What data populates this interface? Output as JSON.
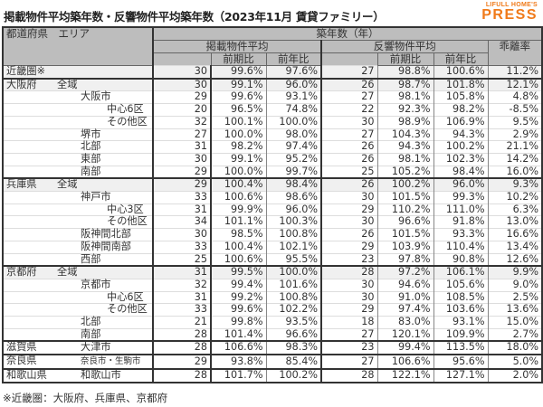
{
  "title": "掲載物件平均築年数・反響物件平均築年数（2023年11月 賃貸ファミリー）",
  "logo": {
    "sub": "LIFULL HOME'S",
    "main": "PRESS"
  },
  "header": {
    "area": "都道府県　エリア",
    "group": "築年数（年）",
    "listed": "掲載物件平均",
    "response": "反響物件平均",
    "gap": "乖離率",
    "qoq": "前期比",
    "yoy": "前年比"
  },
  "rows": [
    {
      "pref": "近畿圏※",
      "area": "",
      "level": 0,
      "listed": "30",
      "listed_qoq": "99.6%",
      "listed_yoy": "97.6%",
      "resp": "27",
      "resp_qoq": "98.8%",
      "resp_yoy": "100.6%",
      "gap": "11.2%",
      "shade": true,
      "section": false
    },
    {
      "pref": "大阪府",
      "area": "全域",
      "level": 1,
      "listed": "30",
      "listed_qoq": "99.1%",
      "listed_yoy": "96.0%",
      "resp": "26",
      "resp_qoq": "98.7%",
      "resp_yoy": "101.8%",
      "gap": "12.1%",
      "shade": true,
      "section": true
    },
    {
      "pref": "",
      "area": "大阪市",
      "level": 2,
      "listed": "29",
      "listed_qoq": "99.6%",
      "listed_yoy": "93.1%",
      "resp": "27",
      "resp_qoq": "98.1%",
      "resp_yoy": "105.8%",
      "gap": "4.8%"
    },
    {
      "pref": "",
      "area": "中心6区",
      "level": 3,
      "listed": "20",
      "listed_qoq": "96.5%",
      "listed_yoy": "74.8%",
      "resp": "22",
      "resp_qoq": "92.3%",
      "resp_yoy": "98.2%",
      "gap": "-8.5%"
    },
    {
      "pref": "",
      "area": "その他区",
      "level": 3,
      "listed": "32",
      "listed_qoq": "100.1%",
      "listed_yoy": "100.0%",
      "resp": "30",
      "resp_qoq": "98.9%",
      "resp_yoy": "106.9%",
      "gap": "9.5%"
    },
    {
      "pref": "",
      "area": "堺市",
      "level": 2,
      "listed": "27",
      "listed_qoq": "100.0%",
      "listed_yoy": "98.0%",
      "resp": "27",
      "resp_qoq": "104.3%",
      "resp_yoy": "94.3%",
      "gap": "2.9%"
    },
    {
      "pref": "",
      "area": "北部",
      "level": 2,
      "listed": "31",
      "listed_qoq": "98.2%",
      "listed_yoy": "97.4%",
      "resp": "26",
      "resp_qoq": "94.3%",
      "resp_yoy": "100.2%",
      "gap": "21.1%"
    },
    {
      "pref": "",
      "area": "東部",
      "level": 2,
      "listed": "30",
      "listed_qoq": "99.1%",
      "listed_yoy": "95.2%",
      "resp": "26",
      "resp_qoq": "98.1%",
      "resp_yoy": "102.3%",
      "gap": "14.2%"
    },
    {
      "pref": "",
      "area": "南部",
      "level": 2,
      "listed": "29",
      "listed_qoq": "100.0%",
      "listed_yoy": "99.7%",
      "resp": "25",
      "resp_qoq": "105.2%",
      "resp_yoy": "98.4%",
      "gap": "16.0%"
    },
    {
      "pref": "兵庫県",
      "area": "全域",
      "level": 1,
      "listed": "29",
      "listed_qoq": "100.4%",
      "listed_yoy": "98.4%",
      "resp": "26",
      "resp_qoq": "100.2%",
      "resp_yoy": "96.0%",
      "gap": "9.3%",
      "shade": true,
      "section": true
    },
    {
      "pref": "",
      "area": "神戸市",
      "level": 2,
      "listed": "33",
      "listed_qoq": "100.6%",
      "listed_yoy": "98.6%",
      "resp": "30",
      "resp_qoq": "101.5%",
      "resp_yoy": "99.3%",
      "gap": "10.2%"
    },
    {
      "pref": "",
      "area": "中心3区",
      "level": 3,
      "listed": "31",
      "listed_qoq": "99.9%",
      "listed_yoy": "96.0%",
      "resp": "29",
      "resp_qoq": "110.2%",
      "resp_yoy": "111.0%",
      "gap": "6.3%"
    },
    {
      "pref": "",
      "area": "その他区",
      "level": 3,
      "listed": "34",
      "listed_qoq": "101.1%",
      "listed_yoy": "100.3%",
      "resp": "30",
      "resp_qoq": "96.6%",
      "resp_yoy": "91.8%",
      "gap": "13.0%"
    },
    {
      "pref": "",
      "area": "阪神間北部",
      "level": 2,
      "listed": "30",
      "listed_qoq": "98.5%",
      "listed_yoy": "100.8%",
      "resp": "26",
      "resp_qoq": "101.5%",
      "resp_yoy": "93.3%",
      "gap": "16.6%"
    },
    {
      "pref": "",
      "area": "阪神間南部",
      "level": 2,
      "listed": "33",
      "listed_qoq": "100.4%",
      "listed_yoy": "102.1%",
      "resp": "29",
      "resp_qoq": "103.9%",
      "resp_yoy": "110.4%",
      "gap": "13.4%"
    },
    {
      "pref": "",
      "area": "西部",
      "level": 2,
      "listed": "25",
      "listed_qoq": "100.6%",
      "listed_yoy": "95.5%",
      "resp": "23",
      "resp_qoq": "97.8%",
      "resp_yoy": "90.8%",
      "gap": "12.6%"
    },
    {
      "pref": "京都府",
      "area": "全域",
      "level": 1,
      "listed": "31",
      "listed_qoq": "99.5%",
      "listed_yoy": "100.0%",
      "resp": "28",
      "resp_qoq": "97.2%",
      "resp_yoy": "106.1%",
      "gap": "9.9%",
      "shade": true,
      "section": true
    },
    {
      "pref": "",
      "area": "京都市",
      "level": 2,
      "listed": "32",
      "listed_qoq": "99.4%",
      "listed_yoy": "101.6%",
      "resp": "30",
      "resp_qoq": "94.6%",
      "resp_yoy": "105.6%",
      "gap": "9.0%"
    },
    {
      "pref": "",
      "area": "中心6区",
      "level": 3,
      "listed": "31",
      "listed_qoq": "99.2%",
      "listed_yoy": "100.8%",
      "resp": "30",
      "resp_qoq": "91.0%",
      "resp_yoy": "108.5%",
      "gap": "2.5%"
    },
    {
      "pref": "",
      "area": "その他区",
      "level": 3,
      "listed": "33",
      "listed_qoq": "99.6%",
      "listed_yoy": "102.2%",
      "resp": "29",
      "resp_qoq": "97.4%",
      "resp_yoy": "103.6%",
      "gap": "13.6%"
    },
    {
      "pref": "",
      "area": "北部",
      "level": 2,
      "listed": "21",
      "listed_qoq": "99.8%",
      "listed_yoy": "93.5%",
      "resp": "18",
      "resp_qoq": "83.0%",
      "resp_yoy": "93.1%",
      "gap": "15.0%"
    },
    {
      "pref": "",
      "area": "南部",
      "level": 2,
      "listed": "28",
      "listed_qoq": "101.4%",
      "listed_yoy": "96.6%",
      "resp": "27",
      "resp_qoq": "120.1%",
      "resp_yoy": "109.9%",
      "gap": "2.7%"
    },
    {
      "pref": "滋賀県",
      "area": "大津市",
      "level": 2,
      "listed": "28",
      "listed_qoq": "106.6%",
      "listed_yoy": "98.3%",
      "resp": "23",
      "resp_qoq": "99.4%",
      "resp_yoy": "113.5%",
      "gap": "18.0%",
      "section": true
    },
    {
      "pref": "奈良県",
      "area": "奈良市・生駒市",
      "level": 2,
      "small": true,
      "listed": "29",
      "listed_qoq": "93.8%",
      "listed_yoy": "85.4%",
      "resp": "27",
      "resp_qoq": "106.6%",
      "resp_yoy": "95.6%",
      "gap": "5.0%",
      "section": true
    },
    {
      "pref": "和歌山県",
      "area": "和歌山市",
      "level": 2,
      "listed": "28",
      "listed_qoq": "101.7%",
      "listed_yoy": "100.2%",
      "resp": "28",
      "resp_qoq": "122.1%",
      "resp_yoy": "127.1%",
      "gap": "2.0%",
      "section": true
    }
  ],
  "footnote": "※近畿圏：大阪府、兵庫県、京都府"
}
